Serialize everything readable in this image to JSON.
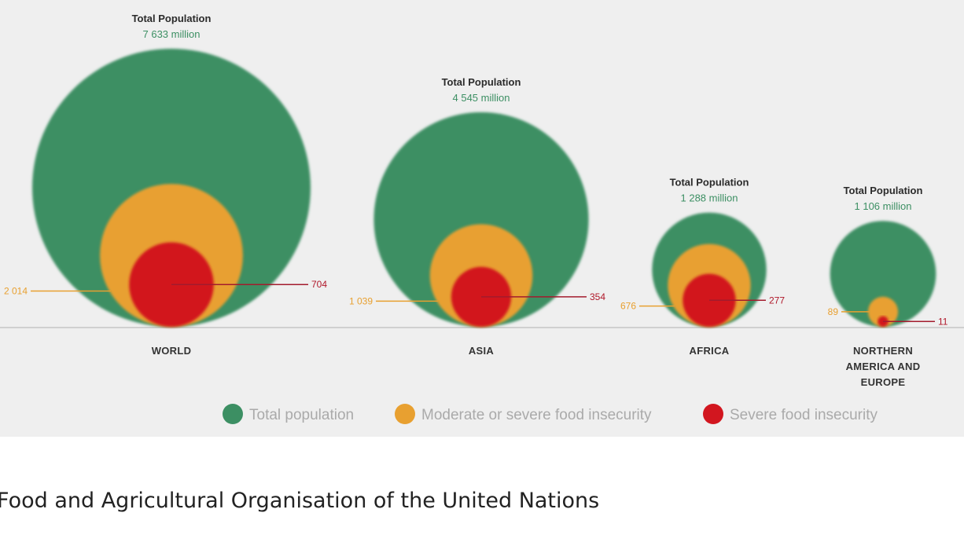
{
  "chart_data": {
    "type": "bubble",
    "total_label": "Total Population",
    "groups": [
      {
        "region": [
          "WORLD"
        ],
        "total": "7 633 million",
        "total_value": 7633,
        "moderate_or_severe": "2 014",
        "moderate_value": 2014,
        "severe": "704",
        "severe_value": 704
      },
      {
        "region": [
          "ASIA"
        ],
        "total": "4 545 million",
        "total_value": 4545,
        "moderate_or_severe": "1 039",
        "moderate_value": 1039,
        "severe": "354",
        "severe_value": 354
      },
      {
        "region": [
          "AFRICA"
        ],
        "total": "1 288 million",
        "total_value": 1288,
        "moderate_or_severe": "676",
        "moderate_value": 676,
        "severe": "277",
        "severe_value": 277
      },
      {
        "region": [
          "NORTHERN",
          "AMERICA AND",
          "EUROPE"
        ],
        "total": "1 106 million",
        "total_value": 1106,
        "moderate_or_severe": "89",
        "moderate_value": 89,
        "severe": "11",
        "severe_value": 11
      }
    ],
    "legend": [
      {
        "label": "Total population",
        "color": "#3c8f63"
      },
      {
        "label": "Moderate or severe food insecurity",
        "color": "#e8a030"
      },
      {
        "label": "Severe food insecurity",
        "color": "#d2161f"
      }
    ],
    "colors": {
      "total": "#3c8f63",
      "moderate": "#e8a030",
      "severe": "#d2161f"
    }
  },
  "source": "Food and Agricultural Organisation of the United Nations"
}
